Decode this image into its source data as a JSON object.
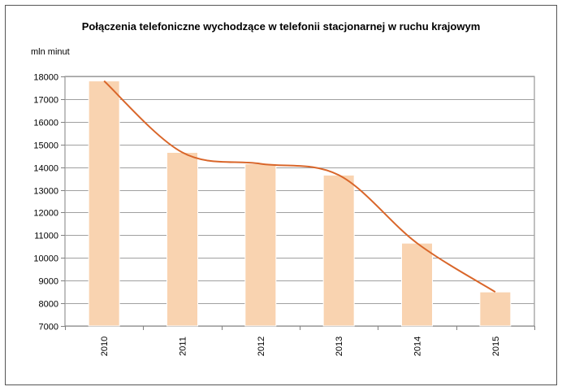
{
  "chart_data": {
    "type": "bar",
    "title": "Połączenia telefoniczne wychodzące w telefonii stacjonarnej w ruchu krajowym",
    "ylabel": "mln minut",
    "xlabel": "",
    "categories": [
      "2010",
      "2011",
      "2012",
      "2013",
      "2014",
      "2015"
    ],
    "series": [
      {
        "values": [
          17800,
          14650,
          14150,
          13650,
          10650,
          8500
        ]
      }
    ],
    "trendline": "smooth curve through bar values",
    "ylim": [
      7000,
      18000
    ],
    "yticks": [
      7000,
      8000,
      9000,
      10000,
      11000,
      12000,
      13000,
      14000,
      15000,
      16000,
      17000,
      18000
    ],
    "grid": true,
    "legend": "none",
    "colors": {
      "bar_fill": "#F9D3B0",
      "bar_stroke": "#FFFFFF",
      "curve": "#D9662A",
      "grid": "#A0A0A0",
      "plot_bg": "#FFFFFF"
    }
  }
}
